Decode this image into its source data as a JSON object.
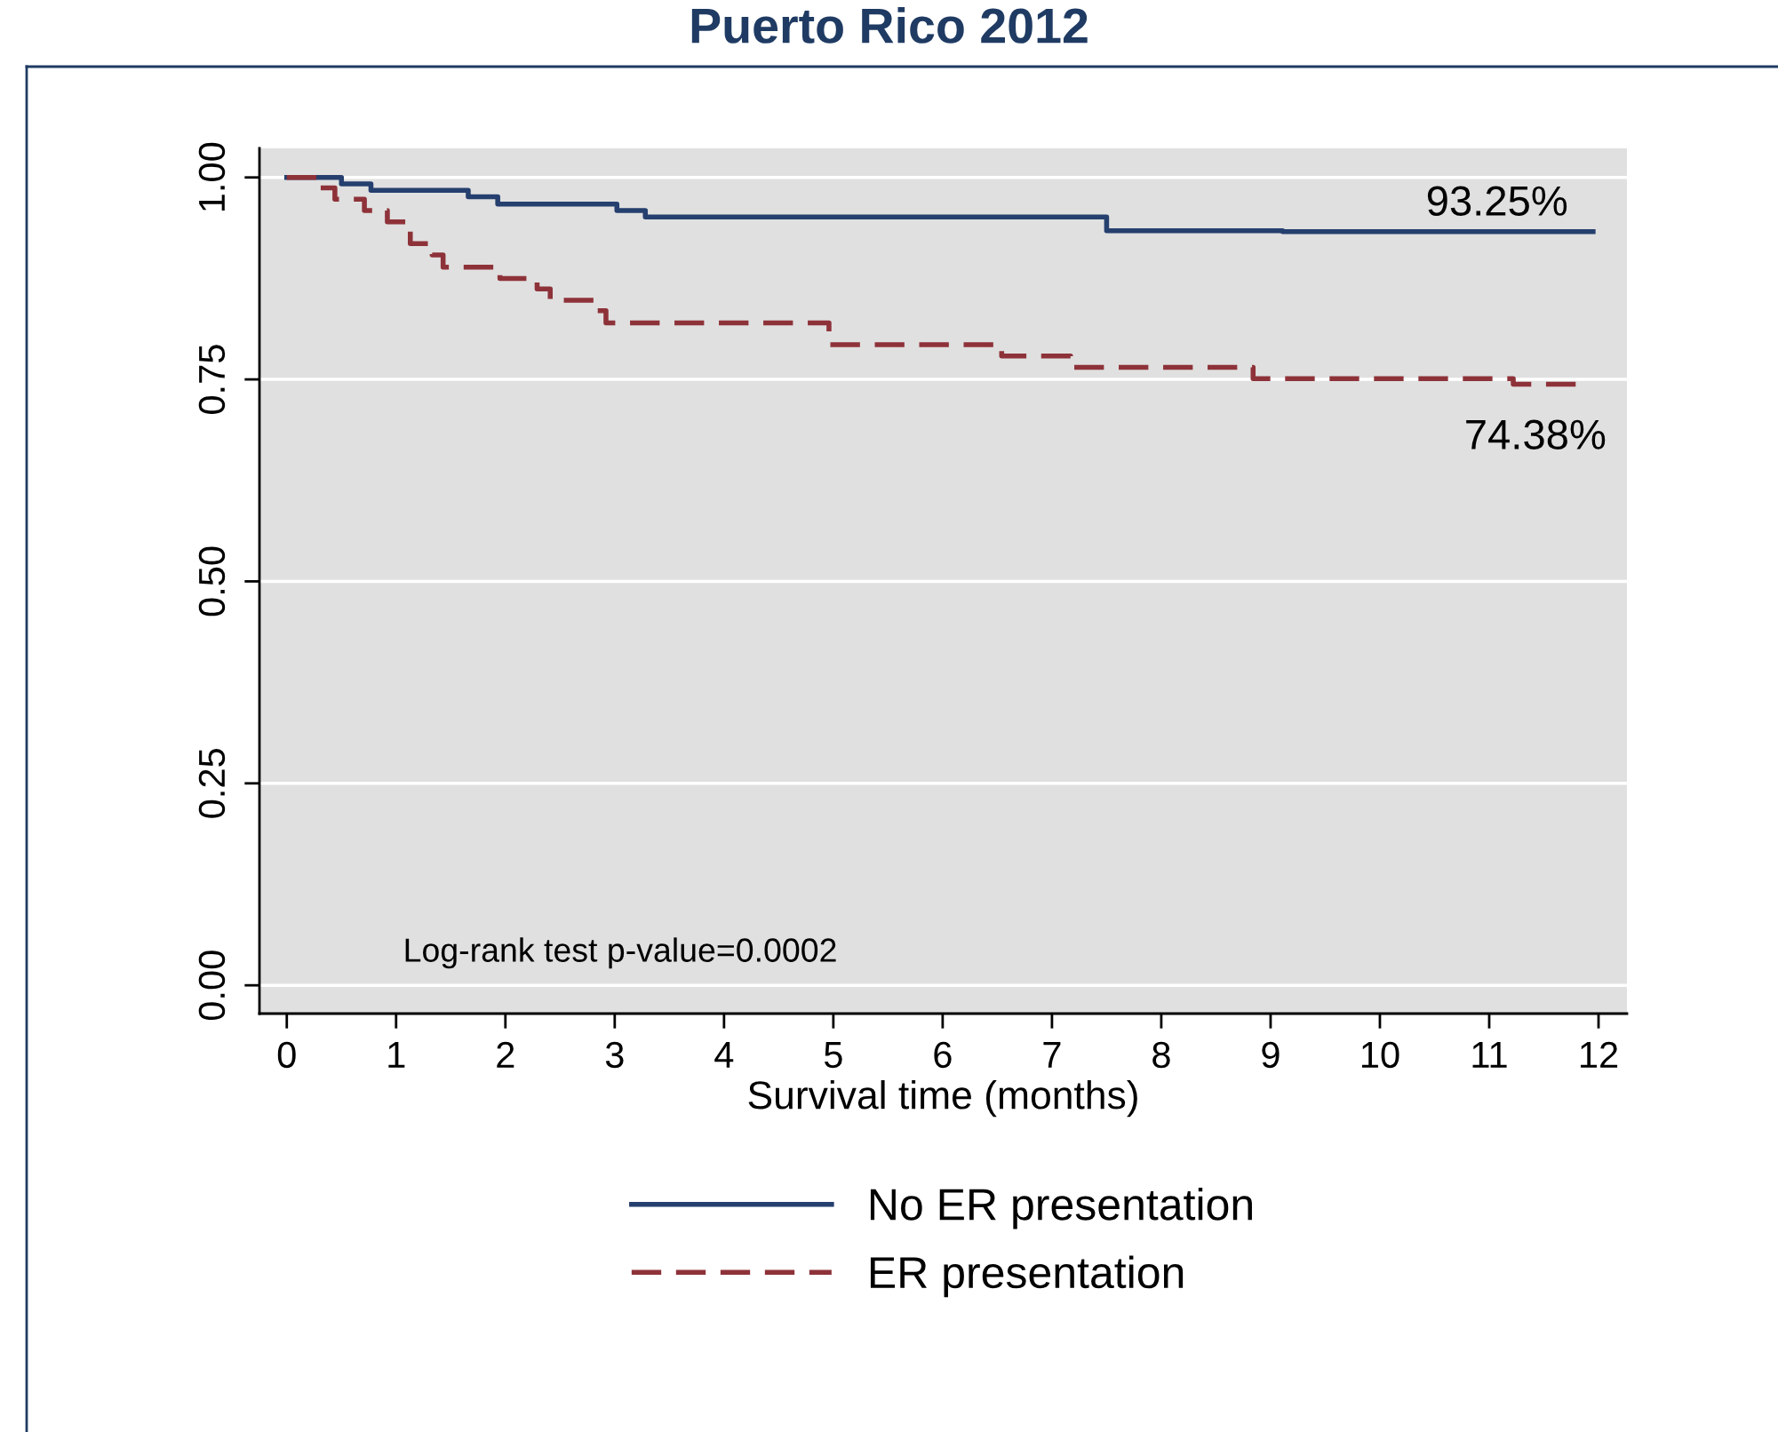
{
  "chart_data": {
    "type": "step",
    "title": "Puerto Rico 2012",
    "xlabel": "Survival time (months)",
    "xlim": [
      -0.25,
      12.26
    ],
    "xticks": [
      0,
      1,
      2,
      3,
      4,
      5,
      6,
      7,
      8,
      9,
      10,
      11,
      12
    ],
    "ylim": [
      -0.035,
      1.036
    ],
    "yticks": [
      {
        "value": 0,
        "label": "0.00"
      },
      {
        "value": 0.25,
        "label": "0.25"
      },
      {
        "value": 0.5,
        "label": "0.50"
      },
      {
        "value": 0.75,
        "label": "0.75"
      },
      {
        "value": 1,
        "label": "1.00"
      }
    ],
    "grid": "y",
    "legend": "bottom",
    "series": [
      {
        "name": "No ER presentation",
        "color": "#253f6e",
        "line_style": "solid",
        "x": [
          0,
          0.5,
          0.77,
          1.66,
          1.93,
          3.02,
          3.28,
          7.5,
          9.11,
          11.95
        ],
        "values": [
          1.0,
          0.992,
          0.984,
          0.976,
          0.967,
          0.959,
          0.951,
          0.934,
          0.933,
          0.933
        ]
      },
      {
        "name": "ER presentation",
        "color": "#8e3239",
        "line_style": "dashed",
        "x": [
          0,
          0.3,
          0.44,
          0.71,
          0.92,
          1.13,
          1.33,
          1.43,
          1.95,
          2.29,
          2.41,
          2.82,
          2.92,
          4.96,
          6.54,
          7.17,
          8.84,
          11.22,
          11.82
        ],
        "values": [
          1.0,
          0.987,
          0.973,
          0.959,
          0.945,
          0.918,
          0.904,
          0.889,
          0.875,
          0.862,
          0.848,
          0.835,
          0.82,
          0.793,
          0.779,
          0.765,
          0.751,
          0.744,
          0.744
        ]
      }
    ],
    "annotations": [
      "93.25%",
      "74.38%",
      "Log-rank test p-value=0.0002"
    ]
  }
}
